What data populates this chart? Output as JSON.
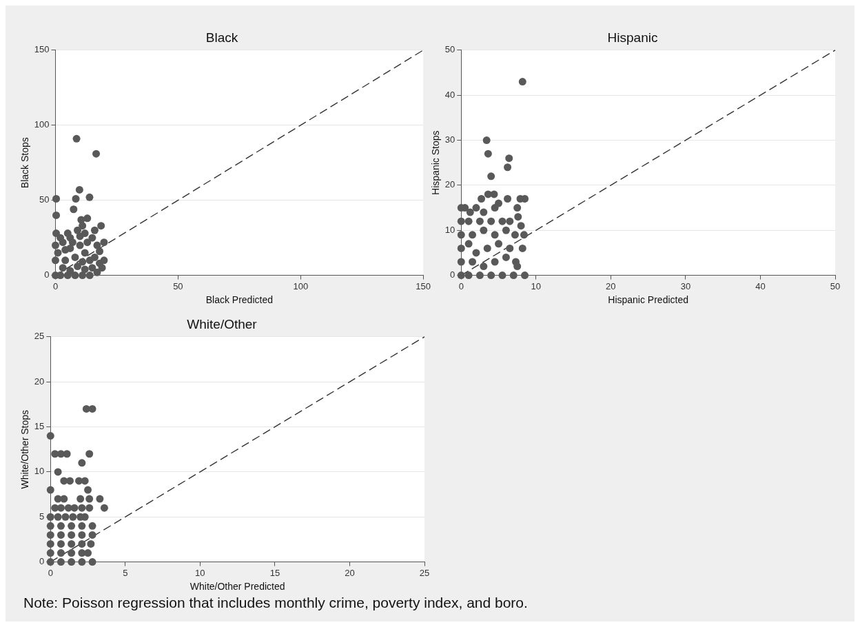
{
  "chart_data": [
    {
      "type": "scatter",
      "title": "Black",
      "xlabel": "Black Predicted",
      "ylabel": "Black Stops",
      "xlim": [
        0,
        150
      ],
      "ylim": [
        0,
        150
      ],
      "xticks": [
        0,
        50,
        100,
        150
      ],
      "yticks": [
        0,
        50,
        100,
        150
      ],
      "grid": "y",
      "legend": false,
      "series": [
        {
          "type": "scatter",
          "color": "#595959",
          "marker": "circle",
          "x": [
            8.6,
            16.6,
            9.8,
            13.9,
            0.3,
            8.3,
            7.4,
            0.3,
            13,
            10.5,
            18.6,
            11,
            0.3,
            16,
            19.8,
            19.8,
            18,
            17,
            15,
            12,
            9,
            6,
            3,
            0,
            0,
            0,
            2,
            5,
            8,
            11,
            14,
            17,
            19,
            1,
            4,
            6,
            8,
            10,
            12,
            14,
            16,
            18,
            3,
            6,
            9,
            12,
            15,
            2,
            7,
            10,
            13,
            4,
            11,
            5
          ],
          "values": [
            91,
            81,
            57,
            52,
            51,
            51,
            44,
            40,
            38,
            37,
            33,
            33,
            28,
            30,
            22,
            10,
            16,
            20,
            25,
            28,
            30,
            25,
            22,
            20,
            10,
            0,
            0,
            0,
            0,
            0,
            0,
            2,
            5,
            15,
            10,
            18,
            12,
            20,
            15,
            10,
            12,
            8,
            5,
            3,
            6,
            4,
            5,
            25,
            22,
            26,
            22,
            17,
            9,
            28
          ]
        },
        {
          "type": "line",
          "color": "#333333",
          "marker": "none",
          "line_style": "dashed",
          "x": [
            0,
            150
          ],
          "values": [
            0,
            150
          ]
        }
      ]
    },
    {
      "type": "scatter",
      "title": "Hispanic",
      "xlabel": "Hispanic Predicted",
      "ylabel": "Hispanic Stops",
      "xlim": [
        0,
        50
      ],
      "ylim": [
        0,
        50
      ],
      "xticks": [
        0,
        10,
        20,
        30,
        40,
        50
      ],
      "yticks": [
        0,
        10,
        20,
        30,
        40,
        50
      ],
      "grid": "y",
      "legend": false,
      "series": [
        {
          "type": "scatter",
          "color": "#595959",
          "marker": "circle",
          "x": [
            8.2,
            3.4,
            3.6,
            6.4,
            6.2,
            4,
            2.7,
            3.6,
            4.4,
            6.2,
            7.9,
            8.5,
            0,
            0.5,
            1.2,
            2,
            3,
            4.5,
            5,
            7.5,
            7.6,
            8,
            0,
            1,
            2.5,
            4,
            5.5,
            6.5,
            0,
            1.5,
            3,
            4.5,
            6,
            7.2,
            8.4,
            0,
            1,
            2,
            3.5,
            5,
            6.5,
            8.2,
            0,
            1.5,
            3,
            4.5,
            6,
            7.3,
            0,
            1,
            2.5,
            4,
            5.5,
            7,
            8.5,
            7.5
          ],
          "values": [
            43,
            30,
            27,
            26,
            24,
            22,
            17,
            18,
            18,
            17,
            17,
            17,
            15,
            15,
            14,
            15,
            14,
            15,
            16,
            15,
            13,
            11,
            12,
            12,
            12,
            12,
            12,
            12,
            9,
            9,
            10,
            9,
            10,
            9,
            9,
            6,
            7,
            5,
            6,
            7,
            6,
            6,
            3,
            3,
            2,
            3,
            4,
            3,
            0,
            0,
            0,
            0,
            0,
            0,
            0,
            2
          ]
        },
        {
          "type": "line",
          "color": "#333333",
          "marker": "none",
          "line_style": "dashed",
          "x": [
            0,
            50
          ],
          "values": [
            0,
            50
          ]
        }
      ]
    },
    {
      "type": "scatter",
      "title": "White/Other",
      "xlabel": "White/Other Predicted",
      "ylabel": "White/Other Stops",
      "xlim": [
        0,
        25
      ],
      "ylim": [
        0,
        25
      ],
      "xticks": [
        0,
        5,
        10,
        15,
        20,
        25
      ],
      "yticks": [
        0,
        5,
        10,
        15,
        20,
        25
      ],
      "grid": "y",
      "legend": false,
      "annotations": [
        "Note: Poisson regression that includes monthly crime, poverty index, and boro."
      ],
      "series": [
        {
          "type": "scatter",
          "color": "#595959",
          "marker": "circle",
          "x": [
            2.4,
            2.8,
            0,
            0.3,
            0.7,
            1.1,
            2.6,
            2.1,
            0.5,
            0.9,
            1.3,
            1.9,
            2.3,
            0,
            2.5,
            0.5,
            0.9,
            2,
            2.6,
            3.3,
            0.3,
            0.7,
            1.2,
            1.6,
            2.1,
            2.6,
            3.6,
            0,
            0.5,
            1,
            1.5,
            2,
            2.3,
            0,
            0.7,
            1.4,
            2.1,
            2.8,
            0,
            0.7,
            1.4,
            2.1,
            2.8,
            0,
            0.7,
            1.4,
            2.1,
            2.7,
            0,
            0.7,
            1.4,
            2.1,
            2.5,
            0,
            0.7,
            1.4,
            2.1,
            2.8
          ],
          "values": [
            17,
            17,
            14,
            12,
            12,
            12,
            12,
            11,
            10,
            9,
            9,
            9,
            9,
            8,
            8,
            7,
            7,
            7,
            7,
            7,
            6,
            6,
            6,
            6,
            6,
            6,
            6,
            5,
            5,
            5,
            5,
            5,
            5,
            4,
            4,
            4,
            4,
            4,
            3,
            3,
            3,
            3,
            3,
            2,
            2,
            2,
            2,
            2,
            1,
            1,
            1,
            1,
            1,
            0,
            0,
            0,
            0,
            0
          ]
        },
        {
          "type": "line",
          "color": "#333333",
          "marker": "none",
          "line_style": "dashed",
          "x": [
            0,
            25
          ],
          "values": [
            0,
            25
          ]
        }
      ]
    }
  ]
}
